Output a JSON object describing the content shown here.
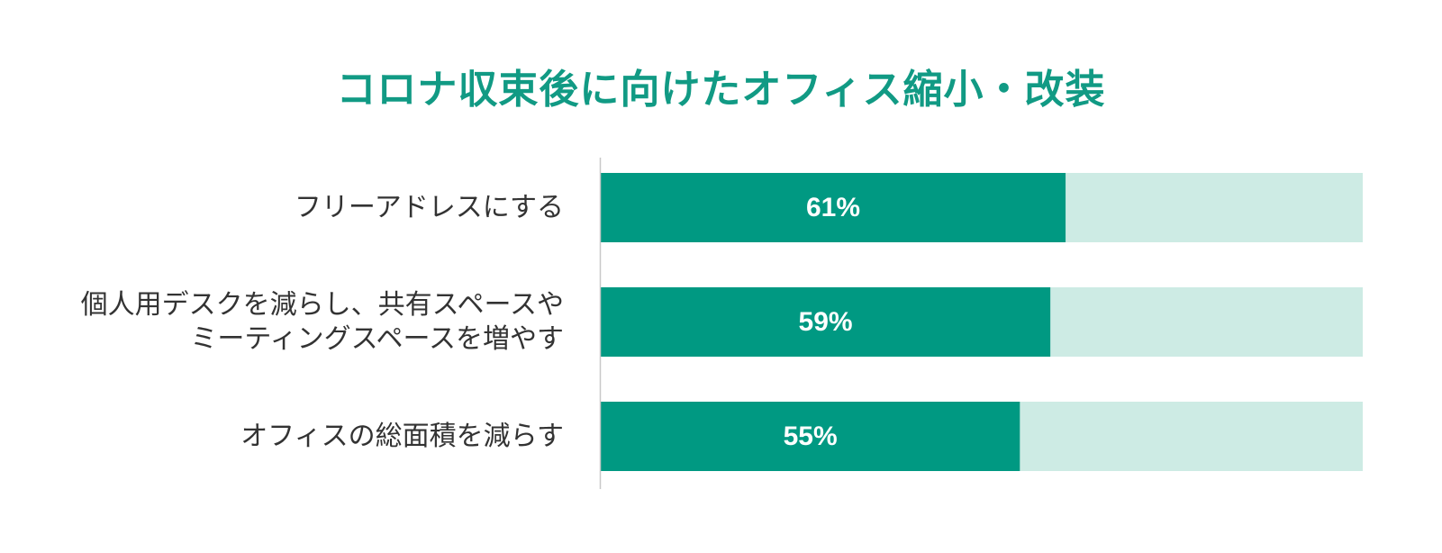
{
  "colors": {
    "title": "#119a84",
    "bar_fill": "#009982",
    "bar_track": "#cdebe4",
    "axis": "#c8c8c8",
    "label": "#333333"
  },
  "chart_data": {
    "type": "bar",
    "orientation": "horizontal",
    "title": "コロナ収束後に向けたオフィス縮小・改装",
    "xlabel": "",
    "ylabel": "",
    "xlim": [
      0,
      100
    ],
    "grid": false,
    "legend": "none",
    "categories": [
      [
        "フリーアドレスにする"
      ],
      [
        "個人用デスクを減らし、共有スペースや",
        "ミーティングスペースを増やす"
      ],
      [
        "オフィスの総面積を減らす"
      ]
    ],
    "values": [
      61,
      59,
      55
    ],
    "value_labels": [
      "61%",
      "59%",
      "55%"
    ]
  }
}
